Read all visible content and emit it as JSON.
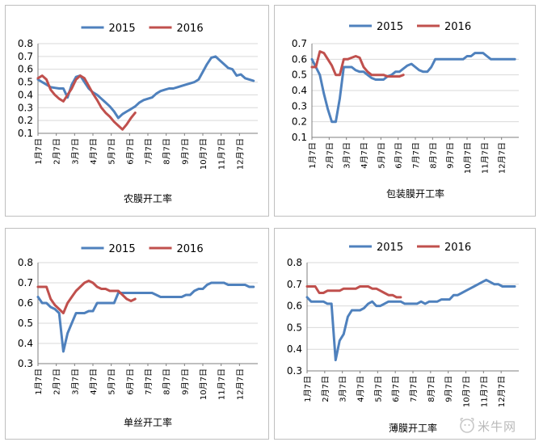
{
  "colors": {
    "s2015": "#4f81bd",
    "s2016": "#c0504d",
    "axis": "#7f7f7f",
    "grid": "#d9d9d9"
  },
  "x_labels": [
    "1月7日",
    "2月7日",
    "3月7日",
    "4月7日",
    "5月7日",
    "6月7日",
    "7月7日",
    "8月7日",
    "9月7日",
    "10月7日",
    "11月7日",
    "12月7日"
  ],
  "watermark": "米牛网",
  "chart_data": [
    {
      "type": "line",
      "xlabel": "农膜开工率",
      "ylim": [
        0.1,
        0.8
      ],
      "yticks": [
        0.1,
        0.2,
        0.3,
        0.4,
        0.5,
        0.6,
        0.7,
        0.8
      ],
      "x_range": [
        0,
        52
      ],
      "categories": [
        "1月7日",
        "2月7日",
        "3月7日",
        "4月7日",
        "5月7日",
        "6月7日",
        "7月7日",
        "8月7日",
        "9月7日",
        "10月7日",
        "11月7日",
        "12月7日"
      ],
      "legend_position": "top",
      "series": [
        {
          "name": "2015",
          "color": "#4f81bd",
          "x": [
            0,
            1,
            2,
            3,
            4,
            5,
            6,
            7,
            8,
            9,
            10,
            11,
            12,
            13,
            14,
            15,
            16,
            17,
            18,
            19,
            20,
            21,
            22,
            23,
            24,
            25,
            26,
            27,
            28,
            29,
            30,
            31,
            32,
            33,
            34,
            35,
            36,
            37,
            38,
            39,
            40,
            41,
            42,
            43,
            44,
            45,
            46,
            47,
            48,
            49,
            50,
            51
          ],
          "values": [
            0.52,
            0.5,
            0.48,
            0.46,
            0.455,
            0.45,
            0.45,
            0.38,
            0.48,
            0.54,
            0.55,
            0.5,
            0.45,
            0.42,
            0.4,
            0.37,
            0.34,
            0.31,
            0.27,
            0.22,
            0.25,
            0.27,
            0.29,
            0.31,
            0.34,
            0.36,
            0.37,
            0.38,
            0.41,
            0.43,
            0.44,
            0.45,
            0.45,
            0.46,
            0.47,
            0.48,
            0.49,
            0.5,
            0.52,
            0.58,
            0.64,
            0.69,
            0.7,
            0.67,
            0.64,
            0.61,
            0.6,
            0.55,
            0.56,
            0.53,
            0.52,
            0.51
          ]
        },
        {
          "name": "2016",
          "color": "#c0504d",
          "x": [
            0,
            1,
            2,
            3,
            4,
            5,
            6,
            7,
            8,
            9,
            10,
            11,
            12,
            13,
            14,
            15,
            16,
            17,
            18,
            19,
            20,
            21,
            22,
            23
          ],
          "values": [
            0.53,
            0.55,
            0.52,
            0.44,
            0.4,
            0.37,
            0.35,
            0.4,
            0.45,
            0.52,
            0.55,
            0.53,
            0.47,
            0.41,
            0.36,
            0.3,
            0.26,
            0.23,
            0.19,
            0.16,
            0.13,
            0.17,
            0.22,
            0.26
          ]
        }
      ]
    },
    {
      "type": "line",
      "xlabel": "包装膜开工率",
      "ylim": [
        0.1,
        0.7
      ],
      "yticks": [
        0.1,
        0.2,
        0.3,
        0.4,
        0.5,
        0.6,
        0.7
      ],
      "x_range": [
        0,
        52
      ],
      "categories": [
        "1月7日",
        "2月7日",
        "3月7日",
        "4月7日",
        "5月7日",
        "6月7日",
        "7月7日",
        "8月7日",
        "9月7日",
        "10月7日",
        "11月7日",
        "12月7日"
      ],
      "legend_position": "top",
      "series": [
        {
          "name": "2015",
          "color": "#4f81bd",
          "x": [
            0,
            1,
            2,
            3,
            4,
            5,
            6,
            7,
            8,
            9,
            10,
            11,
            12,
            13,
            14,
            15,
            16,
            17,
            18,
            19,
            20,
            21,
            22,
            23,
            24,
            25,
            26,
            27,
            28,
            29,
            30,
            31,
            32,
            33,
            34,
            35,
            36,
            37,
            38,
            39,
            40,
            41,
            42,
            43,
            44,
            45,
            46,
            47,
            48,
            49,
            50,
            51
          ],
          "values": [
            0.6,
            0.55,
            0.5,
            0.38,
            0.28,
            0.2,
            0.2,
            0.35,
            0.55,
            0.55,
            0.55,
            0.53,
            0.52,
            0.52,
            0.5,
            0.48,
            0.47,
            0.47,
            0.47,
            0.49,
            0.5,
            0.52,
            0.52,
            0.54,
            0.56,
            0.57,
            0.55,
            0.53,
            0.52,
            0.52,
            0.55,
            0.6,
            0.6,
            0.6,
            0.6,
            0.6,
            0.6,
            0.6,
            0.6,
            0.62,
            0.62,
            0.64,
            0.64,
            0.64,
            0.62,
            0.6,
            0.6,
            0.6,
            0.6,
            0.6,
            0.6,
            0.6
          ]
        },
        {
          "name": "2016",
          "color": "#c0504d",
          "x": [
            0,
            1,
            2,
            3,
            4,
            5,
            6,
            7,
            8,
            9,
            10,
            11,
            12,
            13,
            14,
            15,
            16,
            17,
            18,
            19,
            20,
            21,
            22,
            23
          ],
          "values": [
            0.55,
            0.55,
            0.65,
            0.64,
            0.6,
            0.56,
            0.5,
            0.5,
            0.6,
            0.6,
            0.61,
            0.62,
            0.61,
            0.55,
            0.52,
            0.5,
            0.5,
            0.5,
            0.5,
            0.49,
            0.49,
            0.49,
            0.49,
            0.5
          ]
        }
      ]
    },
    {
      "type": "line",
      "xlabel": "单丝开工率",
      "ylim": [
        0.3,
        0.8
      ],
      "yticks": [
        0.3,
        0.4,
        0.5,
        0.6,
        0.7,
        0.8
      ],
      "x_range": [
        0,
        52
      ],
      "categories": [
        "1月7日",
        "2月7日",
        "3月7日",
        "4月7日",
        "5月7日",
        "6月7日",
        "7月7日",
        "8月7日",
        "9月7日",
        "10月7日",
        "11月7日",
        "12月7日"
      ],
      "legend_position": "top",
      "series": [
        {
          "name": "2015",
          "color": "#4f81bd",
          "x": [
            0,
            1,
            2,
            3,
            4,
            5,
            6,
            7,
            8,
            9,
            10,
            11,
            12,
            13,
            14,
            15,
            16,
            17,
            18,
            19,
            20,
            21,
            22,
            23,
            24,
            25,
            26,
            27,
            28,
            29,
            30,
            31,
            32,
            33,
            34,
            35,
            36,
            37,
            38,
            39,
            40,
            41,
            42,
            43,
            44,
            45,
            46,
            47,
            48,
            49,
            50,
            51
          ],
          "values": [
            0.63,
            0.6,
            0.6,
            0.58,
            0.57,
            0.55,
            0.36,
            0.45,
            0.5,
            0.55,
            0.55,
            0.55,
            0.56,
            0.56,
            0.6,
            0.6,
            0.6,
            0.6,
            0.6,
            0.65,
            0.65,
            0.65,
            0.65,
            0.65,
            0.65,
            0.65,
            0.65,
            0.65,
            0.64,
            0.63,
            0.63,
            0.63,
            0.63,
            0.63,
            0.63,
            0.64,
            0.64,
            0.66,
            0.67,
            0.67,
            0.69,
            0.7,
            0.7,
            0.7,
            0.7,
            0.69,
            0.69,
            0.69,
            0.69,
            0.69,
            0.68,
            0.68
          ]
        },
        {
          "name": "2016",
          "color": "#c0504d",
          "x": [
            0,
            1,
            2,
            3,
            4,
            5,
            6,
            7,
            8,
            9,
            10,
            11,
            12,
            13,
            14,
            15,
            16,
            17,
            18,
            19,
            20,
            21,
            22,
            23
          ],
          "values": [
            0.68,
            0.68,
            0.68,
            0.62,
            0.59,
            0.57,
            0.55,
            0.6,
            0.63,
            0.66,
            0.68,
            0.7,
            0.71,
            0.7,
            0.68,
            0.67,
            0.67,
            0.66,
            0.66,
            0.66,
            0.64,
            0.62,
            0.61,
            0.62
          ]
        }
      ]
    },
    {
      "type": "line",
      "xlabel": "薄膜开工率",
      "ylim": [
        0.3,
        0.8
      ],
      "yticks": [
        0.3,
        0.4,
        0.5,
        0.6,
        0.7,
        0.8
      ],
      "x_range": [
        0,
        52
      ],
      "categories": [
        "1月7日",
        "2月7日",
        "3月7日",
        "4月7日",
        "5月7日",
        "6月7日",
        "7月7日",
        "8月7日",
        "9月7日",
        "10月7日",
        "11月7日",
        "12月7日"
      ],
      "legend_position": "top",
      "series": [
        {
          "name": "2015",
          "color": "#4f81bd",
          "x": [
            0,
            1,
            2,
            3,
            4,
            5,
            6,
            7,
            8,
            9,
            10,
            11,
            12,
            13,
            14,
            15,
            16,
            17,
            18,
            19,
            20,
            21,
            22,
            23,
            24,
            25,
            26,
            27,
            28,
            29,
            30,
            31,
            32,
            33,
            34,
            35,
            36,
            37,
            38,
            39,
            40,
            41,
            42,
            43,
            44,
            45,
            46,
            47,
            48,
            49,
            50,
            51
          ],
          "values": [
            0.64,
            0.62,
            0.62,
            0.62,
            0.62,
            0.61,
            0.61,
            0.35,
            0.44,
            0.47,
            0.55,
            0.58,
            0.58,
            0.58,
            0.59,
            0.61,
            0.62,
            0.6,
            0.6,
            0.61,
            0.62,
            0.62,
            0.62,
            0.62,
            0.61,
            0.61,
            0.61,
            0.61,
            0.62,
            0.61,
            0.62,
            0.62,
            0.62,
            0.63,
            0.63,
            0.63,
            0.65,
            0.65,
            0.66,
            0.67,
            0.68,
            0.69,
            0.7,
            0.71,
            0.72,
            0.71,
            0.7,
            0.7,
            0.69,
            0.69,
            0.69,
            0.69
          ]
        },
        {
          "name": "2016",
          "color": "#c0504d",
          "x": [
            0,
            1,
            2,
            3,
            4,
            5,
            6,
            7,
            8,
            9,
            10,
            11,
            12,
            13,
            14,
            15,
            16,
            17,
            18,
            19,
            20,
            21,
            22,
            23
          ],
          "values": [
            0.69,
            0.69,
            0.69,
            0.66,
            0.66,
            0.67,
            0.67,
            0.67,
            0.67,
            0.68,
            0.68,
            0.68,
            0.68,
            0.69,
            0.69,
            0.69,
            0.68,
            0.68,
            0.67,
            0.66,
            0.65,
            0.65,
            0.64,
            0.64
          ]
        }
      ]
    }
  ]
}
